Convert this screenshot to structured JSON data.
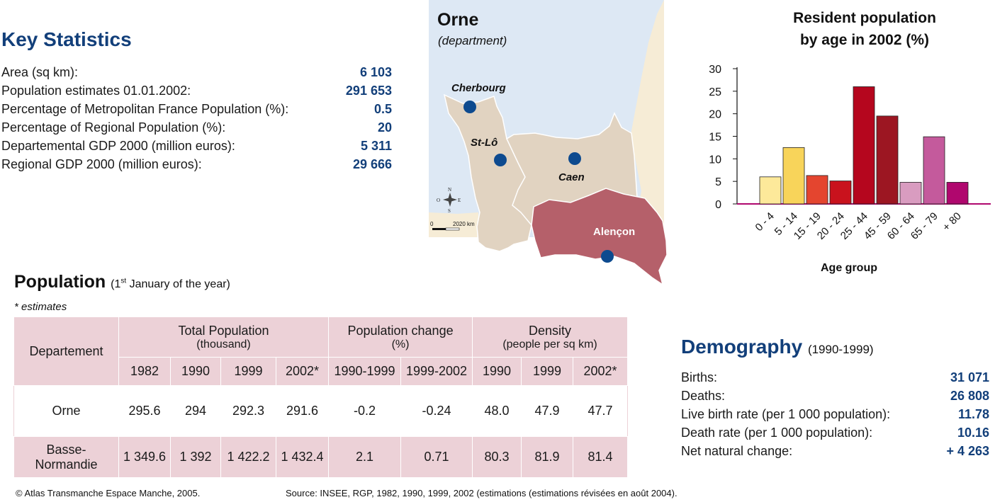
{
  "key_statistics": {
    "title": "Key Statistics",
    "rows": [
      {
        "label": "Area (sq km):",
        "value": "6 103"
      },
      {
        "label": "Population estimates 01.01.2002:",
        "value": "291 653"
      },
      {
        "label": "Percentage of Metropolitan France Population (%):",
        "value": "0.5"
      },
      {
        "label": "Percentage of Regional Population (%):",
        "value": "20"
      },
      {
        "label": "Departemental GDP 2000 (million euros):",
        "value": "5 311"
      },
      {
        "label": "Regional GDP 2000 (million euros):",
        "value": "29 666"
      }
    ]
  },
  "map": {
    "title": "Orne",
    "subtitle": "(department)",
    "cities": [
      "Cherbourg",
      "St-Lô",
      "Caen",
      "Alençon"
    ],
    "compass": {
      "n": "N",
      "s": "S",
      "e": "E",
      "o": "O"
    },
    "scale": {
      "start": "0",
      "end": "2020 km"
    },
    "colors": {
      "sea": "#dde8f4",
      "land": "#e1d3c1",
      "highlight": "#b5606a",
      "other_land": "#f6ecd6",
      "city_dot": "#0d4a8f"
    }
  },
  "chart_data": {
    "type": "bar",
    "title": "Resident population by age in 2002 (%)",
    "title_lines": [
      "Resident population",
      "by age in 2002 (%)"
    ],
    "xlabel": "Age group",
    "ylabel": "",
    "categories": [
      "0 - 4",
      "5 - 14",
      "15 - 19",
      "20 - 24",
      "25 - 44",
      "45 - 59",
      "60 - 64",
      "65 - 79",
      "+ 80"
    ],
    "values": [
      6,
      12.5,
      6.3,
      5.1,
      26,
      19.5,
      4.8,
      14.9,
      4.8
    ],
    "colors": [
      "#fde99a",
      "#f8d45a",
      "#e4452f",
      "#c9121d",
      "#b5061e",
      "#9c1622",
      "#d99cc0",
      "#c45a9c",
      "#b0076e"
    ],
    "ylim": [
      0,
      30
    ],
    "yticks": [
      0,
      5,
      10,
      15,
      20,
      25,
      30
    ],
    "grid": false,
    "axis_color": "#b0076e"
  },
  "population": {
    "title": "Population",
    "title_note_pre": "(1",
    "title_note_sup": "st",
    "title_note_post": " January of the year)",
    "estimates_note": "* estimates",
    "table": {
      "col_departement": "Departement",
      "groups": [
        {
          "label": "Total Population",
          "sub": "(thousand)"
        },
        {
          "label": "Population change",
          "sub": "(%)"
        },
        {
          "label": "Density",
          "sub": "(people per sq km)"
        }
      ],
      "years": [
        "1982",
        "1990",
        "1999",
        "2002*",
        "1990-1999",
        "1999-2002",
        "1990",
        "1999",
        "2002*"
      ],
      "rows": [
        {
          "name": "Orne",
          "name_line2": "",
          "values": [
            "295.6",
            "294",
            "292.3",
            "291.6",
            "-0.2",
            "-0.24",
            "48.0",
            "47.9",
            "47.7"
          ]
        },
        {
          "name": "Basse-",
          "name_line2": "Normandie",
          "values": [
            "1 349.6",
            "1 392",
            "1 422.2",
            "1 432.4",
            "2.1",
            "0.71",
            "80.3",
            "81.9",
            "81.4"
          ]
        }
      ]
    }
  },
  "demography": {
    "title": "Demography",
    "note": "(1990-1999)",
    "rows": [
      {
        "label": "Births:",
        "value": "31 071"
      },
      {
        "label": "Deaths:",
        "value": "26 808"
      },
      {
        "label": "Live birth rate (per 1 000 population):",
        "value": "11.78"
      },
      {
        "label": "Death rate (per 1 000 population):",
        "value": "10.16"
      },
      {
        "label": "Net natural change:",
        "value": "+ 4 263"
      }
    ]
  },
  "footer": {
    "copyright": "© Atlas Transmanche Espace Manche, 2005.",
    "source": "Source: INSEE, RGP, 1982, 1990, 1999, 2002 (estimations (estimations révisées en août 2004)."
  }
}
